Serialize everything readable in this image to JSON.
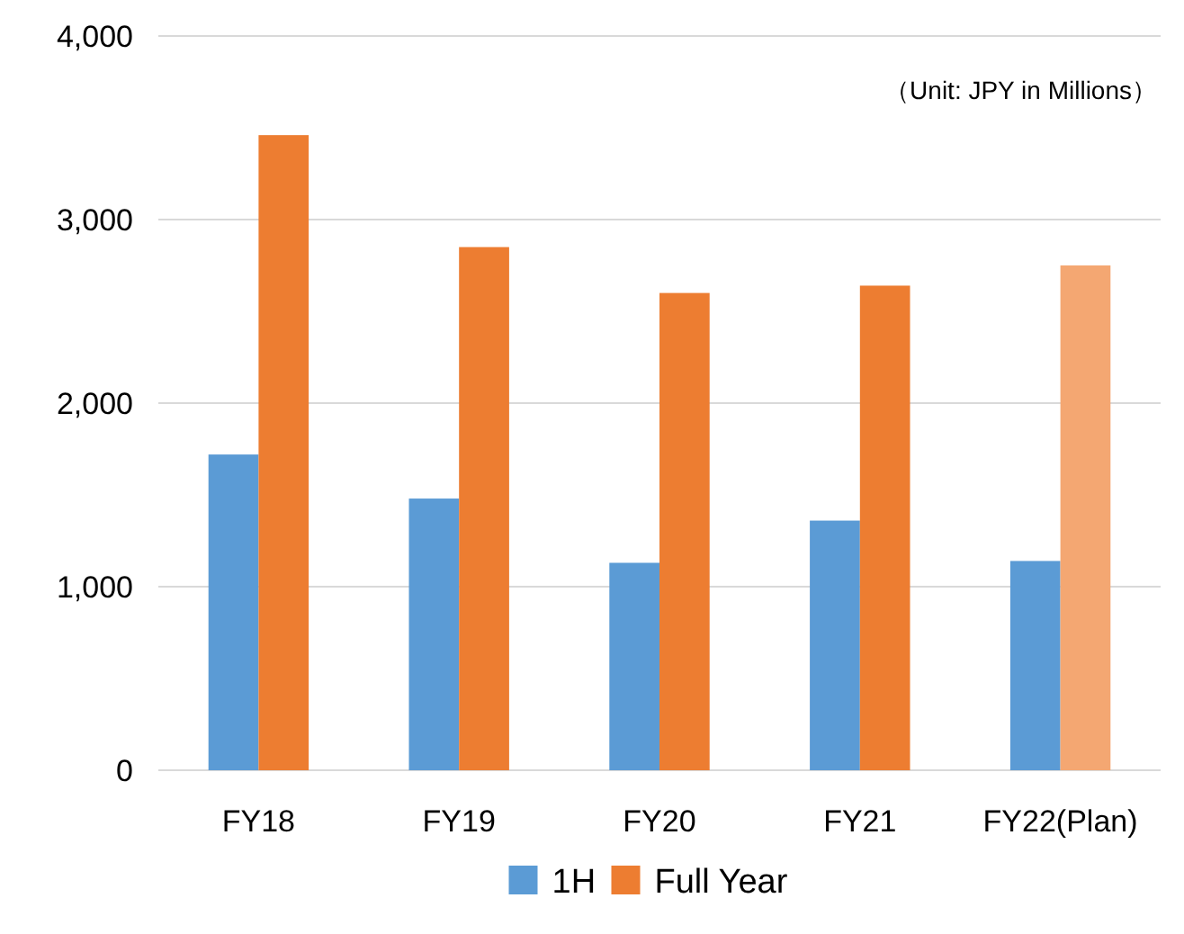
{
  "chart_data": {
    "type": "bar",
    "categories": [
      "FY18",
      "FY19",
      "FY20",
      "FY21",
      "FY22(Plan)"
    ],
    "series": [
      {
        "name": "1H",
        "color": "#5b9bd5",
        "values": [
          1720,
          1480,
          1130,
          1360,
          1140
        ]
      },
      {
        "name": "Full Year",
        "color": "#ed7d31",
        "colors": [
          "#ed7d31",
          "#ed7d31",
          "#ed7d31",
          "#ed7d31",
          "#f4a772"
        ],
        "values": [
          3460,
          2850,
          2600,
          2640,
          2750
        ]
      }
    ],
    "ylim": [
      0,
      4000
    ],
    "yticks": [
      {
        "value": 0,
        "label": "0"
      },
      {
        "value": 1000,
        "label": "1,000"
      },
      {
        "value": 2000,
        "label": "2,000"
      },
      {
        "value": 3000,
        "label": "3,000"
      },
      {
        "value": 4000,
        "label": "4,000"
      }
    ],
    "grid": "y",
    "legend": "bottom",
    "annotations": [
      "（Unit: JPY in Millions）"
    ]
  }
}
